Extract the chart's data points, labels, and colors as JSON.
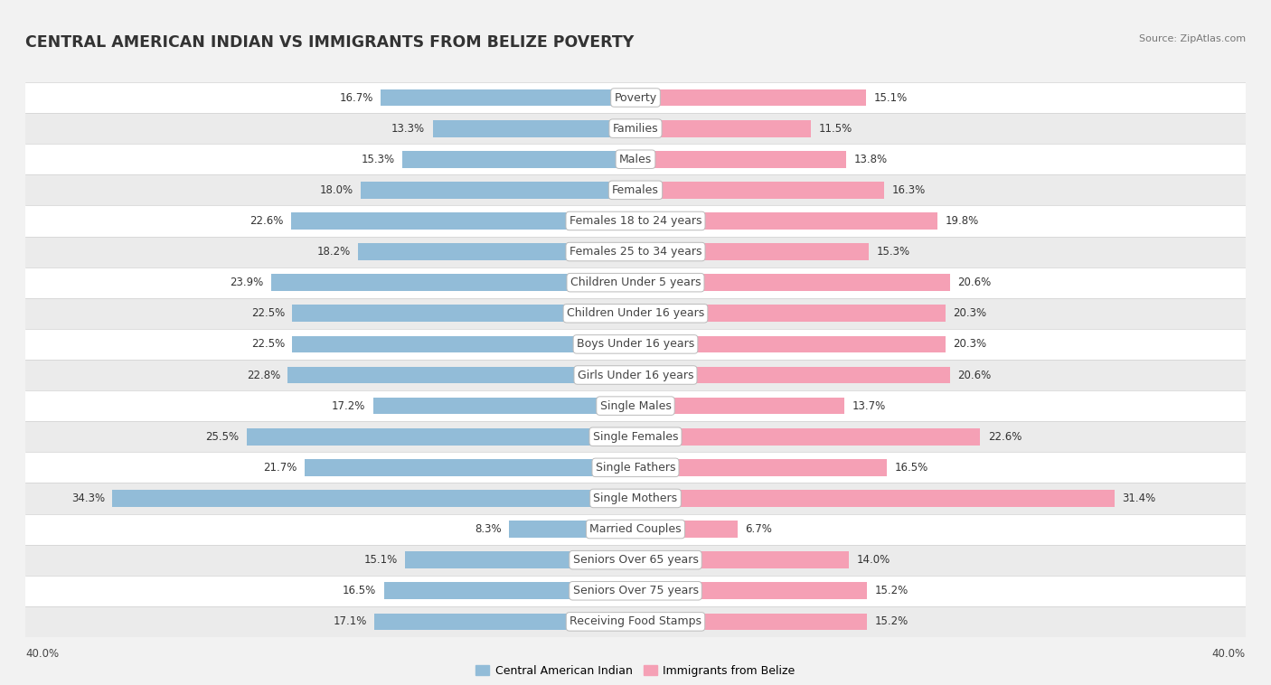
{
  "title": "CENTRAL AMERICAN INDIAN VS IMMIGRANTS FROM BELIZE POVERTY",
  "source": "Source: ZipAtlas.com",
  "categories": [
    "Poverty",
    "Families",
    "Males",
    "Females",
    "Females 18 to 24 years",
    "Females 25 to 34 years",
    "Children Under 5 years",
    "Children Under 16 years",
    "Boys Under 16 years",
    "Girls Under 16 years",
    "Single Males",
    "Single Females",
    "Single Fathers",
    "Single Mothers",
    "Married Couples",
    "Seniors Over 65 years",
    "Seniors Over 75 years",
    "Receiving Food Stamps"
  ],
  "left_values": [
    16.7,
    13.3,
    15.3,
    18.0,
    22.6,
    18.2,
    23.9,
    22.5,
    22.5,
    22.8,
    17.2,
    25.5,
    21.7,
    34.3,
    8.3,
    15.1,
    16.5,
    17.1
  ],
  "right_values": [
    15.1,
    11.5,
    13.8,
    16.3,
    19.8,
    15.3,
    20.6,
    20.3,
    20.3,
    20.6,
    13.7,
    22.6,
    16.5,
    31.4,
    6.7,
    14.0,
    15.2,
    15.2
  ],
  "left_color": "#92bcd8",
  "right_color": "#f5a0b5",
  "left_label": "Central American Indian",
  "right_label": "Immigrants from Belize",
  "axis_max": 40.0,
  "bg_color": "#f2f2f2",
  "row_bg_even": "#ffffff",
  "row_bg_odd": "#ebebeb",
  "label_fontsize": 9.0,
  "value_fontsize": 8.5,
  "title_fontsize": 12.5
}
